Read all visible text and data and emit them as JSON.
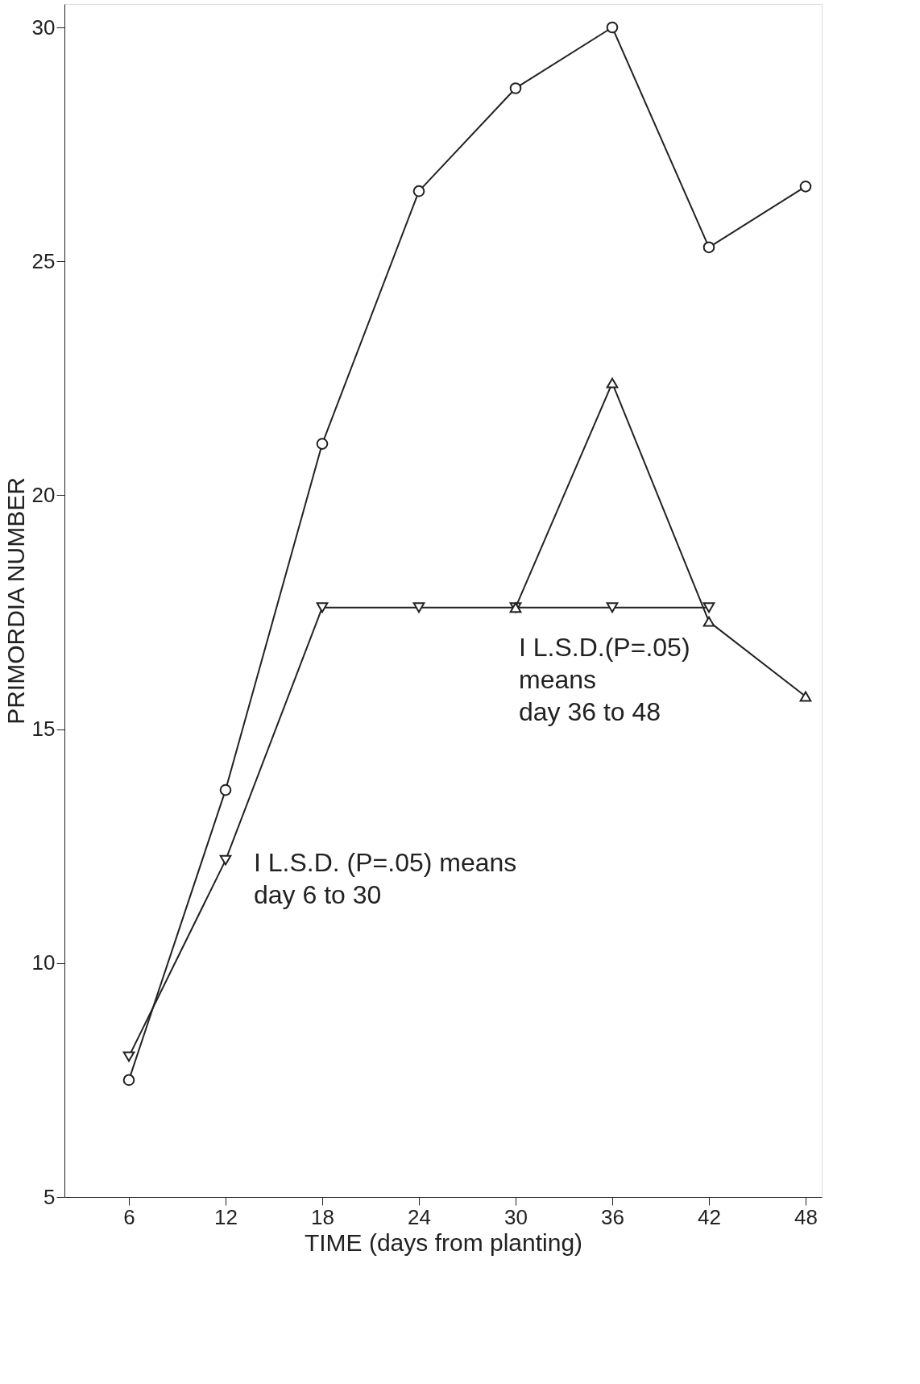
{
  "chart_data": {
    "type": "line",
    "xlabel": "TIME (days from planting)",
    "ylabel": "PRIMORDIA NUMBER",
    "xlim": [
      2,
      49
    ],
    "xticks": [
      6,
      12,
      18,
      24,
      30,
      36,
      42,
      48
    ],
    "ylim": [
      5,
      30.5
    ],
    "yticks": [
      5,
      10,
      15,
      20,
      25,
      30
    ],
    "grid": false,
    "series": [
      {
        "color": "#222222",
        "marker": "circle",
        "x": [
          6,
          12,
          18,
          24,
          30,
          36,
          42,
          48
        ],
        "values": [
          7.5,
          13.7,
          21.1,
          26.5,
          28.7,
          30.0,
          25.3,
          26.6
        ]
      },
      {
        "color": "#222222",
        "marker": "triangle-down",
        "x": [
          6,
          12,
          18,
          24,
          30,
          36,
          42
        ],
        "values": [
          8.0,
          12.2,
          17.6,
          17.6,
          17.6,
          17.6,
          17.6
        ]
      },
      {
        "color": "#222222",
        "marker": "triangle",
        "x": [
          30,
          36,
          42,
          48
        ],
        "values": [
          17.6,
          22.4,
          17.3,
          15.7
        ]
      }
    ],
    "annotations": [
      "I L.S.D.(P=.05)\nmeans\nday 36 to 48",
      "I L.S.D. (P=.05) means\nday 6 to 30"
    ]
  }
}
